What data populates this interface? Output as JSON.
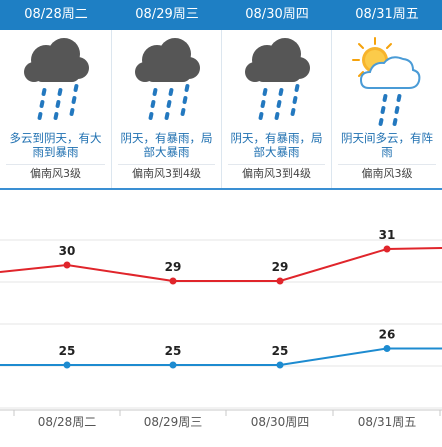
{
  "colors": {
    "header": "#1e7fc4",
    "description_text": "#1e6fb0",
    "high_line": "#e0252b",
    "low_line": "#1d8bd0"
  },
  "days": [
    {
      "date": "08/28周二",
      "icon": "heavy-rain-cloud-icon",
      "description": "多云到阴天，有大雨到暴雨",
      "wind": "偏南风3级"
    },
    {
      "date": "08/29周三",
      "icon": "heavy-rain-cloud-icon",
      "description": "阴天，有暴雨，局部大暴雨",
      "wind": "偏南风3到4级"
    },
    {
      "date": "08/30周四",
      "icon": "heavy-rain-cloud-icon",
      "description": "阴天，有暴雨，局部大暴雨",
      "wind": "偏南风3到4级"
    },
    {
      "date": "08/31周五",
      "icon": "sun-cloud-rain-icon",
      "description": "阴天间多云，有阵雨",
      "wind": "偏南风3级"
    }
  ],
  "chart_data": {
    "type": "line",
    "categories": [
      "08/28周二",
      "08/29周三",
      "08/30周四",
      "08/31周五"
    ],
    "series": [
      {
        "values": [
          30,
          29,
          29,
          31
        ]
      },
      {
        "values": [
          25,
          25,
          25,
          26
        ]
      }
    ]
  }
}
